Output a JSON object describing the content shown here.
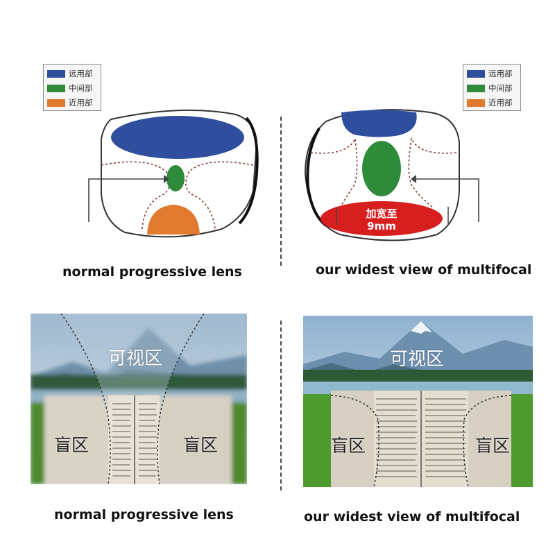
{
  "legend": {
    "items": [
      {
        "label": "远用部",
        "color": "#2f4f9e"
      },
      {
        "label": "中间部",
        "color": "#2e8b3a"
      },
      {
        "label": "近用部",
        "color": "#e07a2e"
      }
    ]
  },
  "top_left": {
    "caption": "normal progressive lens"
  },
  "top_right": {
    "caption": "our widest view of multifocal",
    "badge_line1": "加宽至",
    "badge_line2": "9mm",
    "badge_color": "#d81f1f"
  },
  "bottom_left": {
    "caption": "normal progressive lens",
    "view_zone": "可视区",
    "blind_left": "盲区",
    "blind_right": "盲区"
  },
  "bottom_right": {
    "caption": "our widest view of multifocal",
    "view_zone": "可视区",
    "blind_left": "盲区",
    "blind_right": "盲区"
  }
}
